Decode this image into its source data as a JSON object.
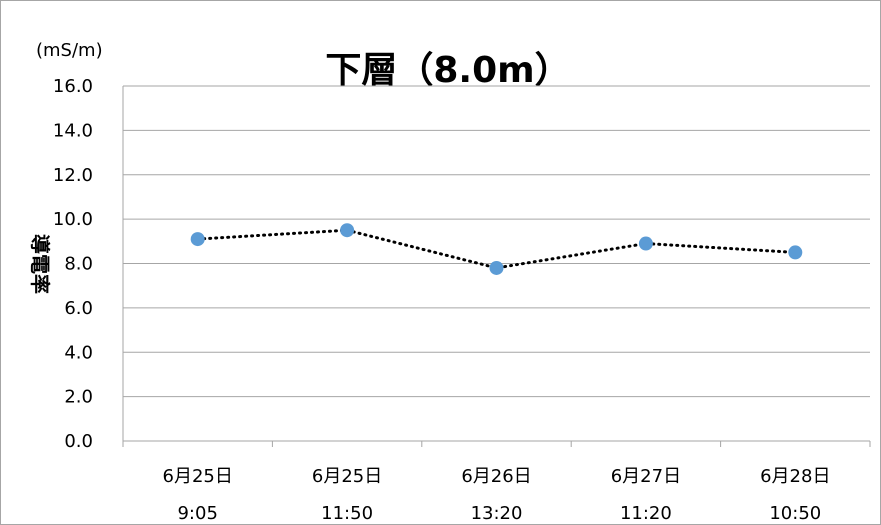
{
  "chart_data": {
    "type": "line",
    "title": "下層（8.0m）",
    "unit": "(mS/m)",
    "ylabel": "導電率",
    "categories": [
      {
        "line1": "6月25日",
        "line2": "9:05"
      },
      {
        "line1": "6月25日",
        "line2": "11:50"
      },
      {
        "line1": "6月26日",
        "line2": "13:20"
      },
      {
        "line1": "6月27日",
        "line2": "11:20"
      },
      {
        "line1": "6月28日",
        "line2": "10:50"
      }
    ],
    "values": [
      9.1,
      9.5,
      7.8,
      8.9,
      8.5
    ],
    "ylim": [
      0,
      16
    ],
    "yticks": [
      "0.0",
      "2.0",
      "4.0",
      "6.0",
      "8.0",
      "10.0",
      "12.0",
      "14.0",
      "16.0"
    ],
    "grid": true,
    "line_style": "dotted",
    "marker_color": "#5b9bd5",
    "line_color": "#000000"
  }
}
